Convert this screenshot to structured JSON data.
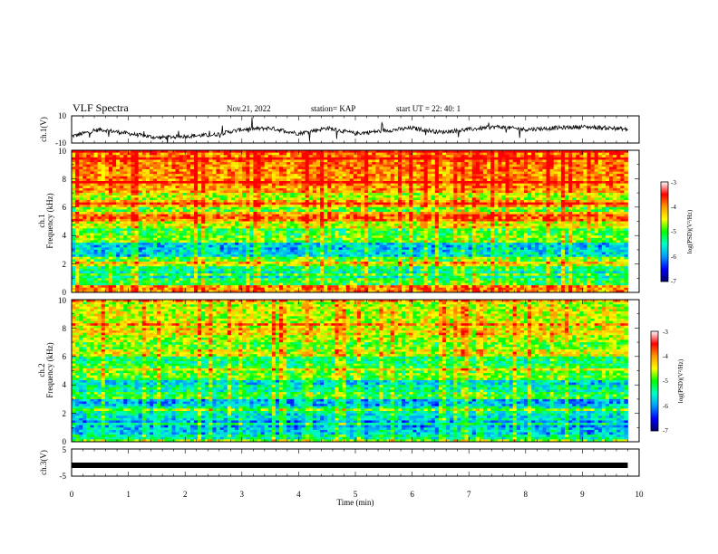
{
  "header": {
    "title": "VLF Spectra",
    "date": "Nov.21, 2022",
    "station": "station= KAP",
    "start_ut": "start  UT =   22: 40: 1"
  },
  "colors": {
    "colormap": [
      "#000066",
      "#0000ff",
      "#0099ff",
      "#00ffcc",
      "#00ff00",
      "#ffff00",
      "#ff9900",
      "#ff0000",
      "#ffffff"
    ],
    "signal_line": "#000000"
  },
  "chart_data": [
    {
      "type": "line",
      "name": "ch.1 waveform",
      "ylabel": "ch.1(V)",
      "ylim": [
        -10,
        10
      ],
      "y_ticks": [
        "10",
        "-10"
      ],
      "x": [
        0,
        0.5,
        1,
        1.5,
        2,
        2.5,
        3,
        3.5,
        4,
        4.5,
        5,
        5.5,
        6,
        6.5,
        7,
        7.5,
        8,
        8.5,
        9,
        9.5,
        9.8
      ],
      "y": [
        -5,
        0,
        -3,
        -6,
        -5,
        -4,
        0,
        1,
        -3,
        1,
        -3,
        -1,
        1,
        -2,
        0,
        2,
        0,
        1,
        2,
        1,
        0
      ],
      "xlim": [
        0,
        10
      ]
    },
    {
      "type": "heatmap",
      "name": "ch.1 spectrogram",
      "ylabel_top": "ch.1",
      "ylabel": "Frequency (kHz)",
      "ylim": [
        0,
        10
      ],
      "y_ticks": [
        "0",
        "2",
        "4",
        "6",
        "8",
        "10"
      ],
      "xlim": [
        0,
        10
      ],
      "data_end_min": 9.8,
      "colorbar": {
        "label": "log(PSD)(V²/Hz)",
        "range": [
          -7,
          -3
        ],
        "ticks": [
          "-3",
          "-4",
          "-5",
          "-6",
          "-7"
        ]
      },
      "freq_khz": [
        0.25,
        0.75,
        1.25,
        1.75,
        2.25,
        2.75,
        3.25,
        3.75,
        4.25,
        4.75,
        5.25,
        5.75,
        6.25,
        6.75,
        7.25,
        7.75,
        8.25,
        8.75,
        9.25,
        9.75
      ],
      "log_psd_profile": [
        -3.6,
        -4.8,
        -5.3,
        -5.0,
        -4.6,
        -5.5,
        -5.6,
        -4.6,
        -4.8,
        -4.2,
        -3.4,
        -4.6,
        -3.8,
        -4.3,
        -3.7,
        -3.6,
        -3.6,
        -3.5,
        -3.5,
        -3.5
      ]
    },
    {
      "type": "heatmap",
      "name": "ch.2 spectrogram",
      "ylabel_top": "ch.2",
      "ylabel": "Frequency (kHz)",
      "ylim": [
        0,
        10
      ],
      "y_ticks": [
        "0",
        "2",
        "4",
        "6",
        "8",
        "10"
      ],
      "xlim": [
        0,
        10
      ],
      "data_end_min": 9.8,
      "colorbar": {
        "label": "log(PSD)(V²/Hz)",
        "range": [
          -7,
          -3
        ],
        "ticks": [
          "-3",
          "-4",
          "-5",
          "-6",
          "-7"
        ]
      },
      "freq_khz": [
        0.25,
        0.75,
        1.25,
        1.75,
        2.25,
        2.75,
        3.25,
        3.75,
        4.25,
        4.75,
        5.25,
        5.75,
        6.25,
        6.75,
        7.25,
        7.75,
        8.25,
        8.75,
        9.25,
        9.75
      ],
      "log_psd_profile": [
        -5.2,
        -5.6,
        -5.8,
        -5.4,
        -5.2,
        -5.7,
        -4.8,
        -5.2,
        -5.5,
        -4.6,
        -4.8,
        -5.0,
        -4.2,
        -4.6,
        -4.3,
        -4.0,
        -4.2,
        -4.2,
        -4.2,
        -4.3
      ]
    },
    {
      "type": "line",
      "name": "ch.3 signal",
      "ylabel": "ch.3(V)",
      "ylim": [
        -5,
        5
      ],
      "y_ticks": [
        "5",
        "-5"
      ],
      "x": [
        0,
        9.8
      ],
      "y": [
        0,
        0
      ],
      "xlim": [
        0,
        10
      ]
    }
  ],
  "x_axis": {
    "label": "Time  (min)",
    "ticks": [
      "0",
      "1",
      "2",
      "3",
      "4",
      "5",
      "6",
      "7",
      "8",
      "9",
      "10"
    ]
  }
}
